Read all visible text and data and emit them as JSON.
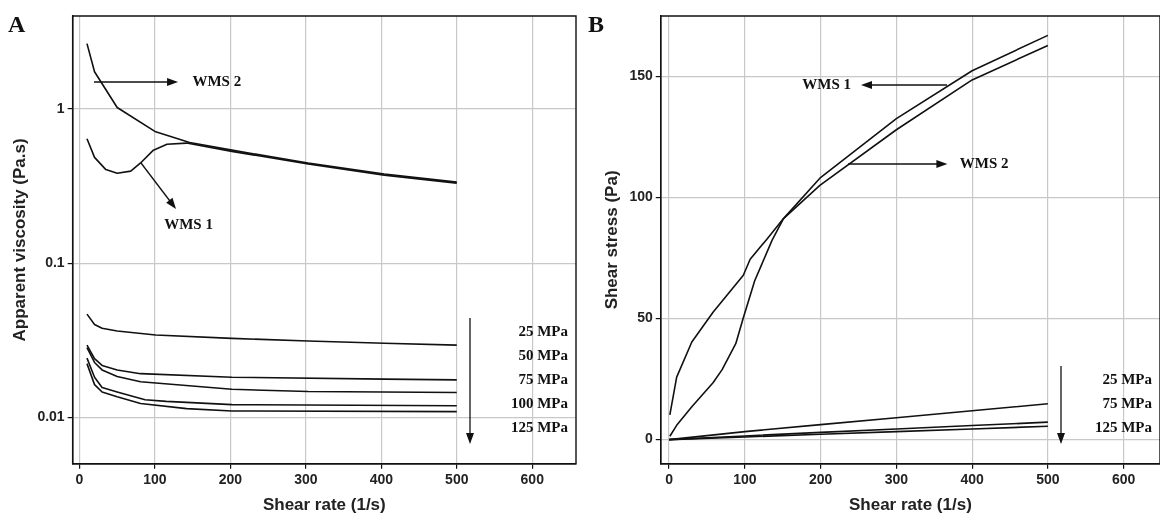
{
  "chart_data": [
    {
      "type": "line",
      "title": "A",
      "xlabel": "Shear rate (1/s)",
      "ylabel": "Apparent viscosity (Pa.s)",
      "log": "y",
      "xlim": [
        -9,
        658
      ],
      "xticks": [
        0,
        100,
        200,
        300,
        400,
        500,
        600
      ],
      "ylim": [
        0.005,
        4
      ],
      "yticks": [
        0.01,
        0.1,
        1
      ],
      "grid": true,
      "legend": false,
      "marker": "none",
      "line_style": "solid",
      "series": [
        {
          "color": "#111111",
          "x": [
            10,
            20,
            50,
            101,
            146,
            202,
            303,
            404,
            500
          ],
          "values": [
            2.65,
            1.74,
            1.02,
            0.71,
            0.605,
            0.54,
            0.446,
            0.378,
            0.335
          ]
        },
        {
          "color": "#111111",
          "x": [
            10,
            20,
            35,
            50,
            68,
            81,
            98,
            116,
            142,
            202,
            303,
            404,
            500
          ],
          "values": [
            0.64,
            0.485,
            0.404,
            0.382,
            0.395,
            0.446,
            0.54,
            0.59,
            0.6,
            0.53,
            0.44,
            0.372,
            0.33
          ]
        },
        {
          "color": "#111111",
          "x": [
            10,
            20,
            30,
            50,
            101,
            202,
            303,
            404,
            500
          ],
          "values": [
            0.0467,
            0.04,
            0.0378,
            0.0363,
            0.0342,
            0.0325,
            0.0313,
            0.0302,
            0.0294
          ]
        },
        {
          "color": "#111111",
          "x": [
            10,
            20,
            30,
            50,
            81,
            202,
            404,
            500
          ],
          "values": [
            0.0294,
            0.024,
            0.0217,
            0.0203,
            0.0192,
            0.0182,
            0.0177,
            0.0175
          ]
        },
        {
          "color": "#111111",
          "x": [
            10,
            20,
            30,
            50,
            81,
            202,
            303,
            500
          ],
          "values": [
            0.0283,
            0.0227,
            0.0203,
            0.0184,
            0.017,
            0.0152,
            0.0147,
            0.0145
          ]
        },
        {
          "color": "#111111",
          "x": [
            10,
            20,
            30,
            50,
            87,
            115,
            202,
            500
          ],
          "values": [
            0.0242,
            0.0182,
            0.0156,
            0.0146,
            0.013,
            0.0127,
            0.0121,
            0.0119
          ]
        },
        {
          "color": "#111111",
          "x": [
            10,
            20,
            30,
            50,
            81,
            142,
            202,
            500
          ],
          "values": [
            0.0223,
            0.0163,
            0.0146,
            0.0136,
            0.0123,
            0.0114,
            0.011,
            0.0109
          ]
        }
      ],
      "annotations": [
        "WMS 2",
        {
          "text": "WMS 1",
          "x": 81,
          "y": 0.446
        },
        "25 MPa",
        "50 MPa",
        "75 MPa",
        "100 MPa",
        "125 MPa"
      ]
    },
    {
      "type": "line",
      "title": "B",
      "xlabel": "Shear rate (1/s)",
      "ylabel": "Shear stress (Pa)",
      "xlim": [
        -11,
        648
      ],
      "xticks": [
        0,
        100,
        200,
        300,
        400,
        500,
        600
      ],
      "ylim": [
        -10,
        175
      ],
      "yticks": [
        0,
        50,
        100,
        150
      ],
      "grid": true,
      "legend": false,
      "marker": "none",
      "line_style": "solid",
      "series": [
        {
          "color": "#111111",
          "x": [
            1,
            10,
            30,
            58,
            70,
            88,
            98,
            113,
            136,
            151,
            199,
            300,
            400,
            500
          ],
          "values": [
            1.4,
            5.9,
            13.6,
            23.5,
            28.9,
            39.6,
            50.3,
            65.6,
            82.4,
            91.3,
            108,
            132.6,
            152.4,
            167
          ]
        },
        {
          "color": "#111111",
          "x": [
            1,
            10,
            30,
            58,
            98,
            107,
            128,
            151,
            199,
            300,
            400,
            500
          ],
          "values": [
            10.2,
            25.8,
            40.3,
            52.6,
            67.9,
            74.5,
            82.4,
            91.3,
            105,
            128,
            148.6,
            162.8
          ]
        },
        {
          "color": "#111111",
          "x": [
            0,
            100,
            200,
            300,
            400,
            500
          ],
          "values": [
            0,
            3.3,
            6.2,
            9,
            11.9,
            14.8
          ]
        },
        {
          "color": "#111111",
          "x": [
            0,
            100,
            200,
            300,
            400,
            500
          ],
          "values": [
            0,
            1.5,
            3,
            4.4,
            5.8,
            7.2
          ]
        },
        {
          "color": "#111111",
          "x": [
            0,
            100,
            200,
            300,
            400,
            500
          ],
          "values": [
            0,
            1.1,
            2.2,
            3.3,
            4.4,
            5.5
          ]
        }
      ],
      "annotations": [
        {
          "text": "WMS 1",
          "x": 367,
          "y": 146.3
        },
        "WMS 2",
        "25 MPa",
        "75 MPa",
        "125 MPa"
      ]
    }
  ]
}
